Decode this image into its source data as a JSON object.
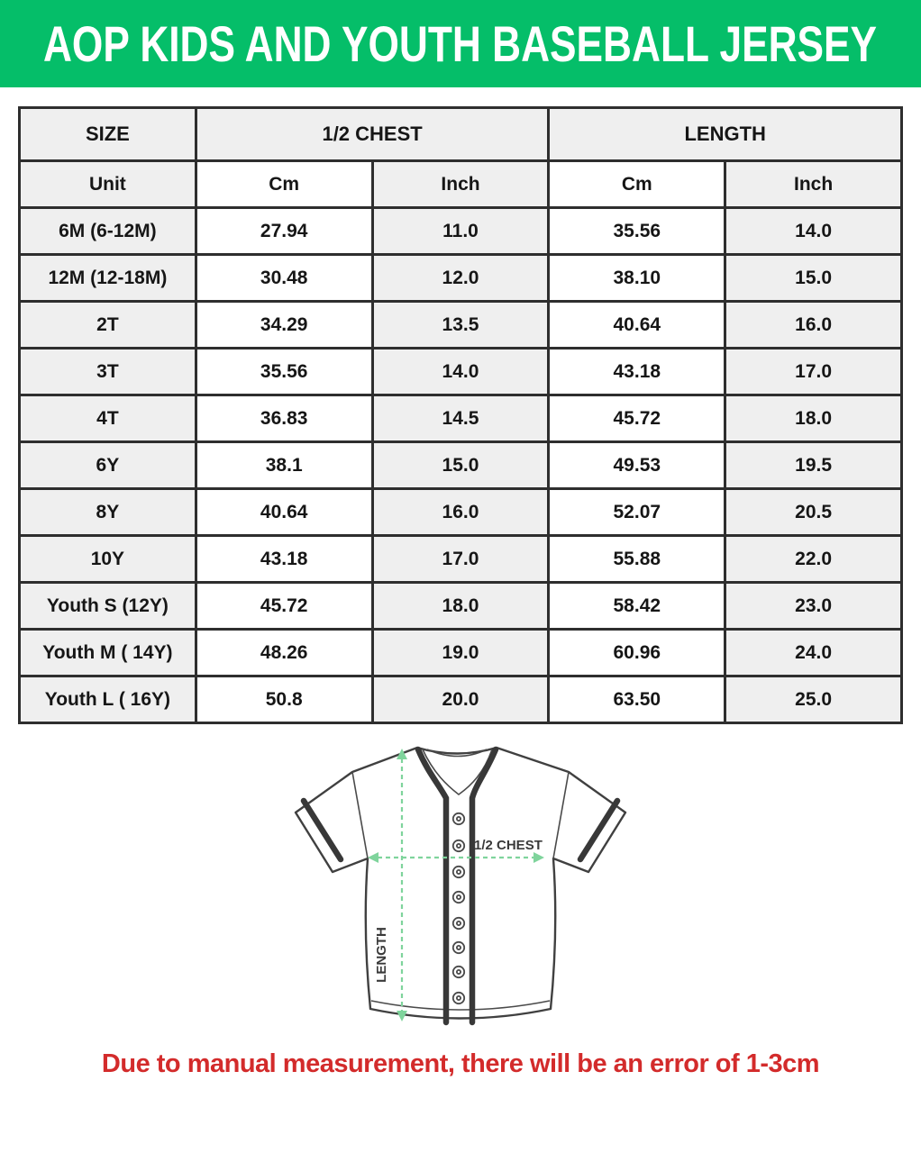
{
  "header": {
    "title": "AOP KIDS AND YOUTH BASEBALL JERSEY",
    "bg_color": "#05be69",
    "text_color": "#ffffff"
  },
  "size_table": {
    "group_headers": {
      "size": "SIZE",
      "half_chest": "1/2 CHEST",
      "length": "LENGTH"
    },
    "unit_header": {
      "label": "Unit",
      "chest_cm": "Cm",
      "chest_inch": "Inch",
      "length_cm": "Cm",
      "length_inch": "Inch"
    },
    "rows": [
      {
        "size": "6M (6-12M)",
        "chest_cm": "27.94",
        "chest_inch": "11.0",
        "length_cm": "35.56",
        "length_inch": "14.0"
      },
      {
        "size": "12M (12-18M)",
        "chest_cm": "30.48",
        "chest_inch": "12.0",
        "length_cm": "38.10",
        "length_inch": "15.0"
      },
      {
        "size": "2T",
        "chest_cm": "34.29",
        "chest_inch": "13.5",
        "length_cm": "40.64",
        "length_inch": "16.0"
      },
      {
        "size": "3T",
        "chest_cm": "35.56",
        "chest_inch": "14.0",
        "length_cm": "43.18",
        "length_inch": "17.0"
      },
      {
        "size": "4T",
        "chest_cm": "36.83",
        "chest_inch": "14.5",
        "length_cm": "45.72",
        "length_inch": "18.0"
      },
      {
        "size": "6Y",
        "chest_cm": "38.1",
        "chest_inch": "15.0",
        "length_cm": "49.53",
        "length_inch": "19.5"
      },
      {
        "size": "8Y",
        "chest_cm": "40.64",
        "chest_inch": "16.0",
        "length_cm": "52.07",
        "length_inch": "20.5"
      },
      {
        "size": "10Y",
        "chest_cm": "43.18",
        "chest_inch": "17.0",
        "length_cm": "55.88",
        "length_inch": "22.0"
      },
      {
        "size": "Youth S (12Y)",
        "chest_cm": "45.72",
        "chest_inch": "18.0",
        "length_cm": "58.42",
        "length_inch": "23.0"
      },
      {
        "size": "Youth M ( 14Y)",
        "chest_cm": "48.26",
        "chest_inch": "19.0",
        "length_cm": "60.96",
        "length_inch": "24.0"
      },
      {
        "size": "Youth L ( 16Y)",
        "chest_cm": "50.8",
        "chest_inch": "20.0",
        "length_cm": "63.50",
        "length_inch": "25.0"
      }
    ],
    "colors": {
      "cell_gray": "#efefef",
      "cell_white": "#ffffff",
      "border": "#2e2e2e"
    }
  },
  "diagram": {
    "half_chest_label": "1/2 CHEST",
    "length_label": "LENGTH",
    "arrow_color": "#7fd49c",
    "outline_color": "#404040"
  },
  "footnote": {
    "text": "Due to manual measurement, there will be an error of 1-3cm",
    "color": "#d32b2b"
  }
}
